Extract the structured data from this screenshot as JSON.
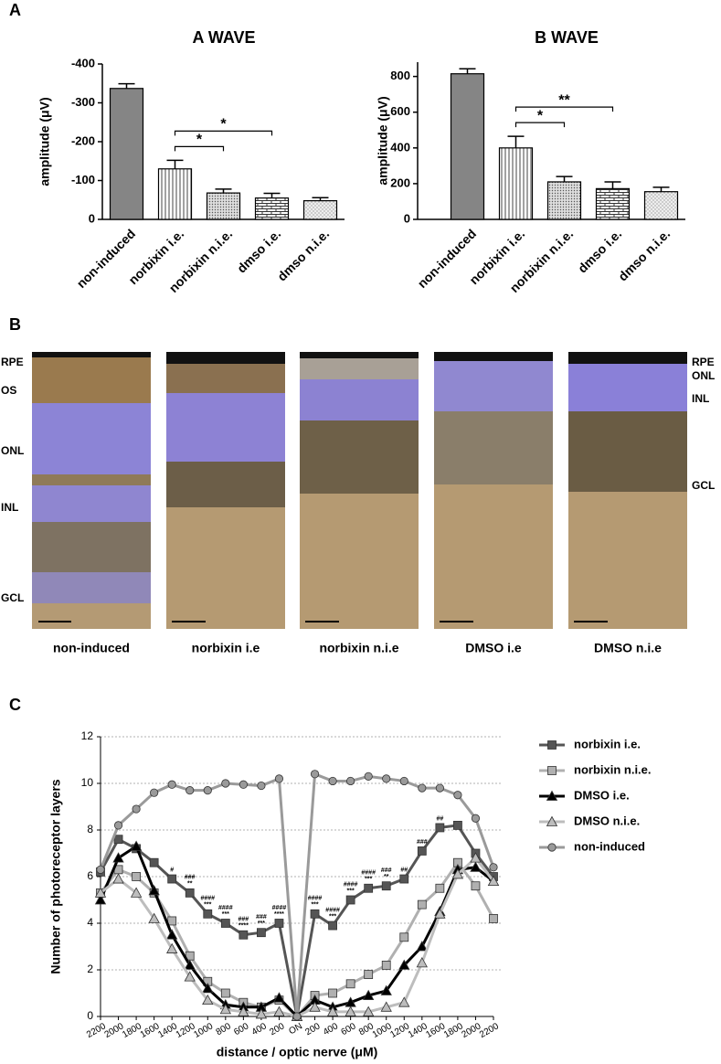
{
  "panel_labels": [
    "A",
    "B",
    "C"
  ],
  "chart_data": [
    {
      "type": "bar",
      "title": "A WAVE",
      "y_label": "amplitude (μV)",
      "categories": [
        "non-induced",
        "norbixin i.e.",
        "norbixin n.i.e.",
        "dmso i.e.",
        "dmso n.i.e."
      ],
      "values": [
        -337,
        -130,
        -68,
        -55,
        -48
      ],
      "errors": [
        12,
        22,
        10,
        12,
        8
      ],
      "ylim": [
        0,
        -400
      ],
      "yticks": [
        0,
        -100,
        -200,
        -300,
        -400
      ],
      "annotations": [
        {
          "text": "*",
          "from": 1,
          "to": 2
        },
        {
          "text": "*",
          "from": 1,
          "to": 3
        }
      ]
    },
    {
      "type": "bar",
      "title": "B WAVE",
      "y_label": "amplitude (μV)",
      "categories": [
        "non-induced",
        "norbixin i.e.",
        "norbixin n.i.e.",
        "dmso i.e.",
        "dmso n.i.e."
      ],
      "values": [
        815,
        400,
        210,
        172,
        155
      ],
      "errors": [
        28,
        65,
        30,
        38,
        25
      ],
      "ylim": [
        0,
        880
      ],
      "yticks": [
        0,
        200,
        400,
        600,
        800
      ],
      "annotations": [
        {
          "text": "*",
          "from": 1,
          "to": 2
        },
        {
          "text": "**",
          "from": 1,
          "to": 3
        }
      ]
    },
    {
      "type": "line",
      "y_label": "Number of photoreceptor layers",
      "x_label": "distance / optic nerve (μM)",
      "categories": [
        "2200",
        "2000",
        "1800",
        "1600",
        "1400",
        "1200",
        "1000",
        "800",
        "600",
        "400",
        "200",
        "ON",
        "200",
        "400",
        "600",
        "800",
        "1000",
        "1200",
        "1400",
        "1600",
        "1800",
        "2000",
        "2200"
      ],
      "series": [
        {
          "name": "norbixin i.e.",
          "color": "#555555",
          "marker": "square",
          "values": [
            6.2,
            7.6,
            7.2,
            6.6,
            5.9,
            5.3,
            4.4,
            4.0,
            3.5,
            3.6,
            4.0,
            0,
            4.4,
            3.9,
            5.0,
            5.5,
            5.6,
            5.9,
            7.1,
            8.1,
            8.2,
            7.0,
            6.0
          ]
        },
        {
          "name": "norbixin n.i.e.",
          "color": "#b0b0b0",
          "marker": "square",
          "values": [
            5.3,
            6.3,
            6.0,
            5.3,
            4.1,
            2.6,
            1.5,
            1.0,
            0.6,
            0.4,
            0.7,
            0,
            0.9,
            1.0,
            1.4,
            1.8,
            2.2,
            3.4,
            4.8,
            5.5,
            6.6,
            5.6,
            4.2
          ]
        },
        {
          "name": "DMSO i.e.",
          "color": "#000000",
          "marker": "triangle",
          "values": [
            5.0,
            6.8,
            7.3,
            5.4,
            3.5,
            2.2,
            1.2,
            0.5,
            0.4,
            0.4,
            0.8,
            0,
            0.7,
            0.4,
            0.6,
            0.9,
            1.1,
            2.2,
            3.0,
            4.5,
            6.3,
            6.4,
            5.8
          ]
        },
        {
          "name": "DMSO n.i.e.",
          "color": "#bdbdbd",
          "marker": "triangle",
          "values": [
            5.3,
            5.9,
            5.3,
            4.2,
            2.9,
            1.7,
            0.7,
            0.3,
            0.2,
            0.1,
            0.2,
            0,
            0.4,
            0.2,
            0.2,
            0.2,
            0.4,
            0.6,
            2.3,
            4.4,
            6.1,
            6.8,
            5.8
          ]
        },
        {
          "name": "non-induced",
          "color": "#9a9a9a",
          "marker": "circle",
          "values": [
            6.3,
            8.2,
            8.9,
            9.6,
            9.95,
            9.7,
            9.7,
            10.0,
            9.95,
            9.9,
            10.2,
            0,
            10.4,
            10.1,
            10.1,
            10.3,
            10.2,
            10.1,
            9.8,
            9.8,
            9.5,
            8.5,
            6.4
          ]
        }
      ],
      "ylim": [
        0,
        12
      ],
      "yticks": [
        0,
        2,
        4,
        6,
        8,
        10,
        12
      ],
      "grid": true,
      "annotations": [
        {
          "index": 4,
          "lines": [
            "#"
          ]
        },
        {
          "index": 5,
          "lines": [
            "###",
            "**"
          ]
        },
        {
          "index": 6,
          "lines": [
            "####",
            "***"
          ]
        },
        {
          "index": 7,
          "lines": [
            "####",
            "***"
          ]
        },
        {
          "index": 8,
          "lines": [
            "###",
            "****"
          ]
        },
        {
          "index": 9,
          "lines": [
            "###",
            "***"
          ]
        },
        {
          "index": 10,
          "lines": [
            "####",
            "****"
          ]
        },
        {
          "index": 12,
          "lines": [
            "####",
            "***"
          ]
        },
        {
          "index": 13,
          "lines": [
            "####",
            "***"
          ]
        },
        {
          "index": 14,
          "lines": [
            "####",
            "***"
          ]
        },
        {
          "index": 15,
          "lines": [
            "####",
            "***"
          ]
        },
        {
          "index": 16,
          "lines": [
            "###",
            "**"
          ]
        },
        {
          "index": 17,
          "lines": [
            "##"
          ]
        },
        {
          "index": 18,
          "lines": [
            "###"
          ]
        },
        {
          "index": 19,
          "lines": [
            "##"
          ]
        }
      ]
    }
  ],
  "histology": {
    "captions": [
      "non-induced",
      "norbixin i.e",
      "norbixin n.i.e",
      "DMSO i.e",
      "DMSO n.i.e"
    ],
    "layers_left": [
      "RPE",
      "OS",
      "ONL",
      "INL",
      "GCL"
    ],
    "layers_right": [
      "RPE",
      "ONL",
      "INL",
      "GCL"
    ]
  }
}
